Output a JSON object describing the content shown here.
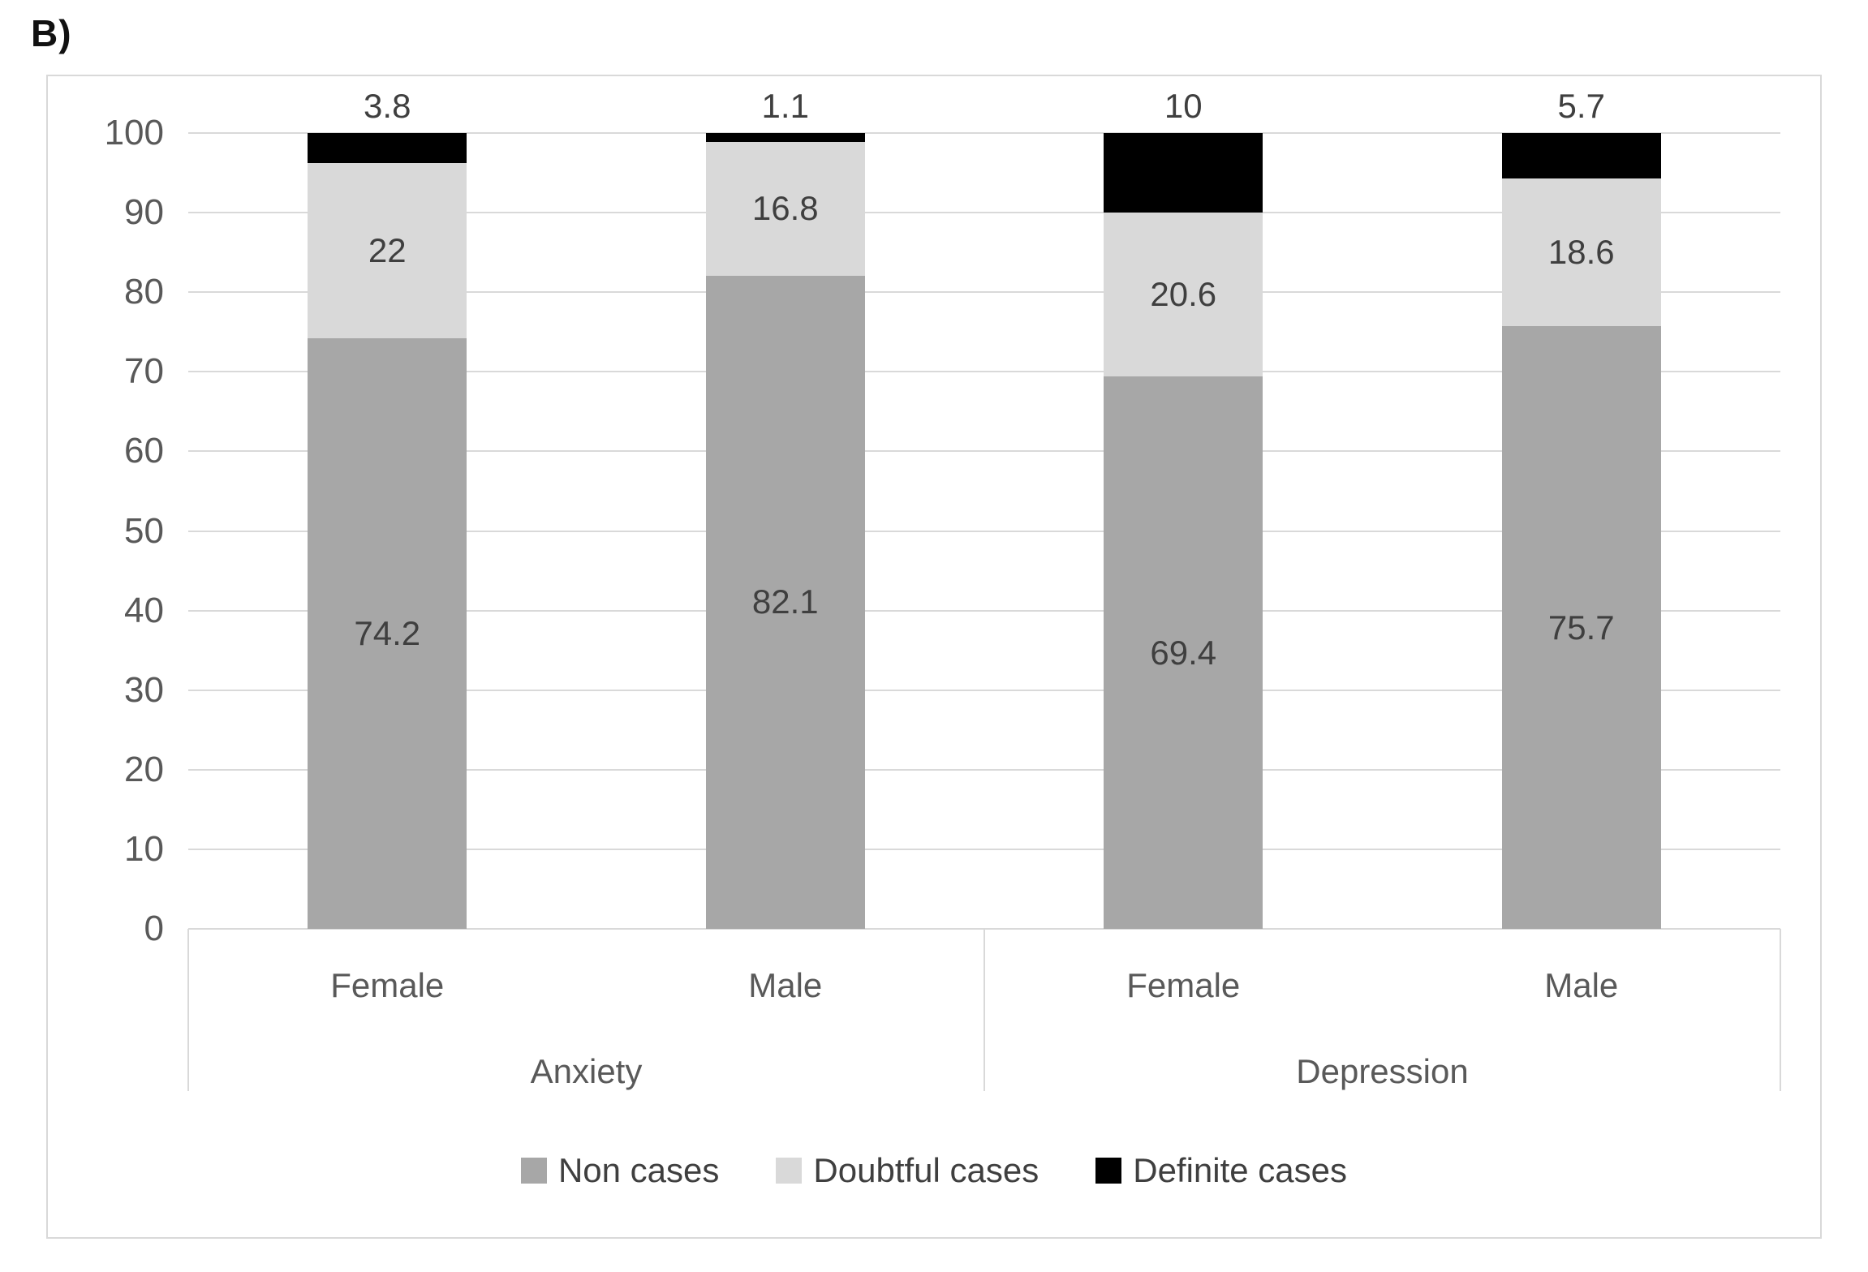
{
  "panel_label": "B)",
  "chart_data": {
    "type": "bar",
    "stacked": true,
    "title": "",
    "xlabel": "",
    "ylabel": "",
    "categories": [
      "Female",
      "Male",
      "Female",
      "Male"
    ],
    "category_groups": [
      {
        "label": "Anxiety",
        "span": [
          0,
          1
        ]
      },
      {
        "label": "Depression",
        "span": [
          2,
          3
        ]
      }
    ],
    "series": [
      {
        "name": "Non cases",
        "color": "#a7a7a7",
        "values": [
          74.2,
          82.1,
          69.4,
          75.7
        ],
        "labels": [
          "74.2",
          "82.1",
          "69.4",
          "75.7"
        ],
        "label_placement": "center"
      },
      {
        "name": "Doubtful cases",
        "color": "#d9d9d9",
        "values": [
          22.0,
          16.8,
          20.6,
          18.6
        ],
        "labels": [
          "22",
          "16.8",
          "20.6",
          "18.6"
        ],
        "label_placement": "center"
      },
      {
        "name": "Definite cases",
        "color": "#000000",
        "values": [
          3.8,
          1.1,
          10.0,
          5.7
        ],
        "labels": [
          "3.8",
          "1.1",
          "10",
          "5.7"
        ],
        "label_placement": "outside-end"
      }
    ],
    "y_axis": {
      "min": 0,
      "max": 100,
      "step": 10,
      "tick_labels": [
        "0",
        "10",
        "20",
        "30",
        "40",
        "50",
        "60",
        "70",
        "80",
        "90",
        "100"
      ]
    },
    "legend": {
      "position": "bottom",
      "entries": [
        "Non cases",
        "Doubtful cases",
        "Definite cases"
      ]
    },
    "grid": true,
    "gridline_color": "#d9d9d9",
    "text_colors": {
      "ticks": "#595959",
      "data_labels": "#3f3f3f",
      "category": "#595959",
      "legend": "#3f3f3f"
    }
  }
}
